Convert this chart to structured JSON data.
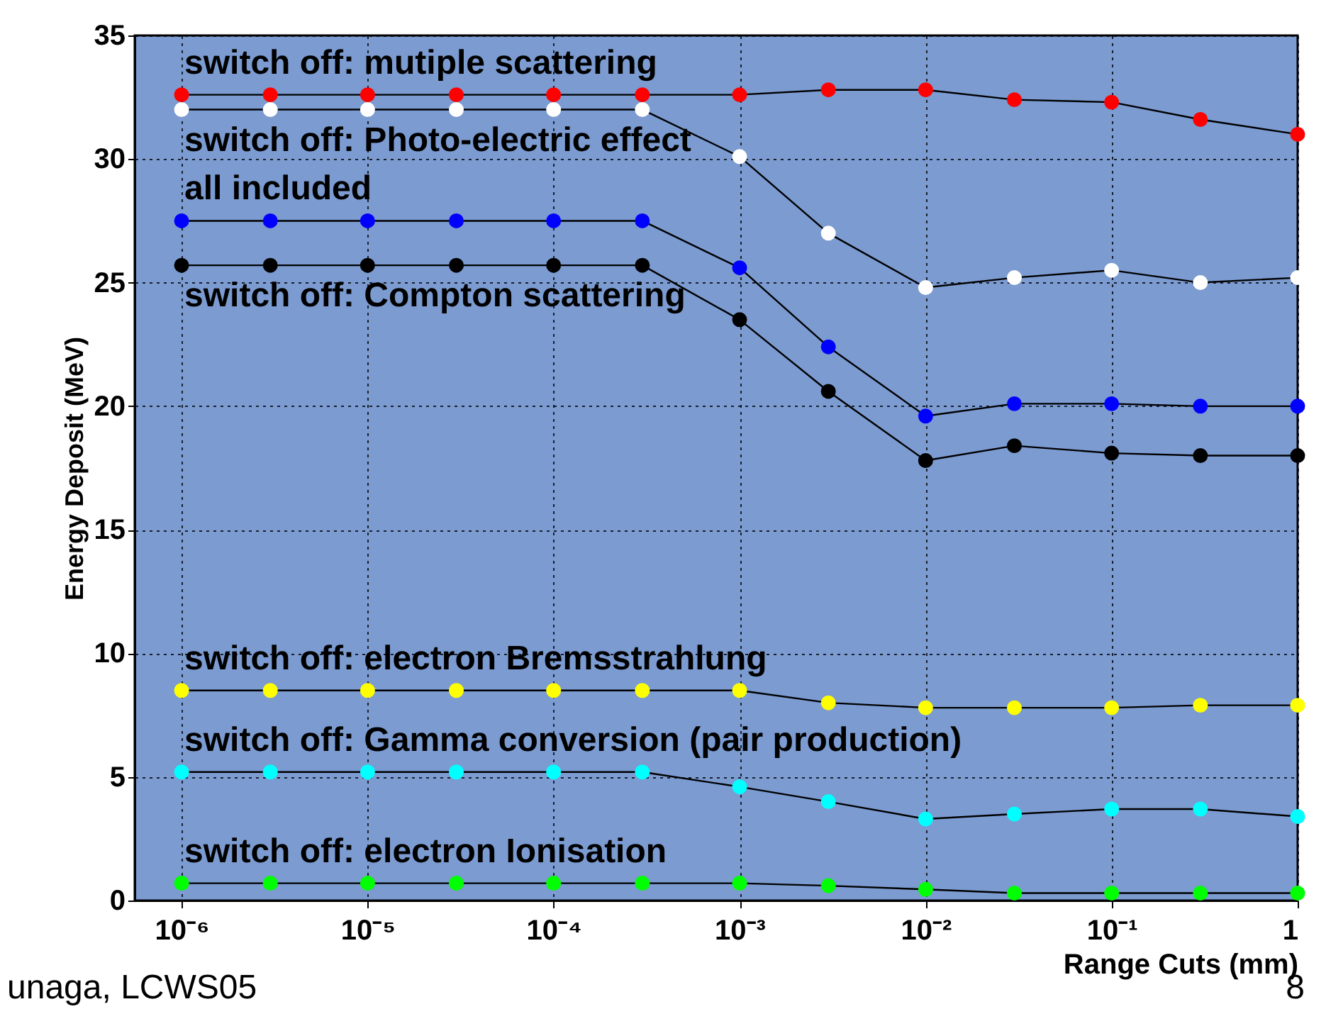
{
  "chart_data": {
    "type": "line",
    "xlabel": "Range Cuts (mm)",
    "ylabel": "Energy Deposit (MeV)",
    "x": [
      1e-06,
      3e-06,
      1e-05,
      3e-05,
      0.0001,
      0.0003,
      0.001,
      0.003,
      0.01,
      0.03,
      0.1,
      0.3,
      1
    ],
    "series": [
      {
        "name": "switch off: mutiple scattering",
        "color": "#ff0000",
        "values": [
          32.6,
          32.6,
          32.6,
          32.6,
          32.6,
          32.6,
          32.6,
          32.8,
          32.8,
          32.4,
          32.3,
          31.6,
          31.0
        ]
      },
      {
        "name": "switch off: Photo-electric effect",
        "color": "#ffffff",
        "values": [
          32.0,
          32.0,
          32.0,
          32.0,
          32.0,
          32.0,
          30.1,
          27.0,
          24.8,
          25.2,
          25.5,
          25.0,
          25.2
        ]
      },
      {
        "name": "all included",
        "color": "#0000ff",
        "values": [
          27.5,
          27.5,
          27.5,
          27.5,
          27.5,
          27.5,
          25.6,
          22.4,
          19.6,
          20.1,
          20.1,
          20.0,
          20.0
        ]
      },
      {
        "name": "switch off: Compton scattering",
        "color": "#000000",
        "values": [
          25.7,
          25.7,
          25.7,
          25.7,
          25.7,
          25.7,
          23.5,
          20.6,
          17.8,
          18.4,
          18.1,
          18.0,
          18.0
        ]
      },
      {
        "name": "switch off: electron Bremsstrahlung",
        "color": "#ffff00",
        "values": [
          8.5,
          8.5,
          8.5,
          8.5,
          8.5,
          8.5,
          8.5,
          8.0,
          7.8,
          7.8,
          7.8,
          7.9,
          7.9
        ]
      },
      {
        "name": "switch off: Gamma conversion (pair production)",
        "color": "#00ffff",
        "values": [
          5.2,
          5.2,
          5.2,
          5.2,
          5.2,
          5.2,
          4.6,
          4.0,
          3.3,
          3.5,
          3.7,
          3.7,
          3.4
        ]
      },
      {
        "name": "switch off: electron Ionisation",
        "color": "#00ff00",
        "values": [
          0.7,
          0.7,
          0.7,
          0.7,
          0.7,
          0.7,
          0.7,
          0.6,
          0.45,
          0.3,
          0.3,
          0.3,
          0.3
        ]
      }
    ],
    "xlim": [
      5.6e-07,
      1
    ],
    "ylim": [
      0,
      35
    ],
    "xticks": [
      {
        "value": 1e-06,
        "label": "10⁻⁶"
      },
      {
        "value": 1e-05,
        "label": "10⁻⁵"
      },
      {
        "value": 0.0001,
        "label": "10⁻⁴"
      },
      {
        "value": 0.001,
        "label": "10⁻³"
      },
      {
        "value": 0.01,
        "label": "10⁻²"
      },
      {
        "value": 0.1,
        "label": "10⁻¹"
      },
      {
        "value": 1,
        "label": "1"
      }
    ],
    "yticks": [
      0,
      5,
      10,
      15,
      20,
      25,
      30,
      35
    ],
    "log": "x",
    "grid": true,
    "legend": false,
    "marker": "circle",
    "line_style": "solid",
    "annotations": [
      "unaga, LCWS05",
      "8"
    ]
  }
}
